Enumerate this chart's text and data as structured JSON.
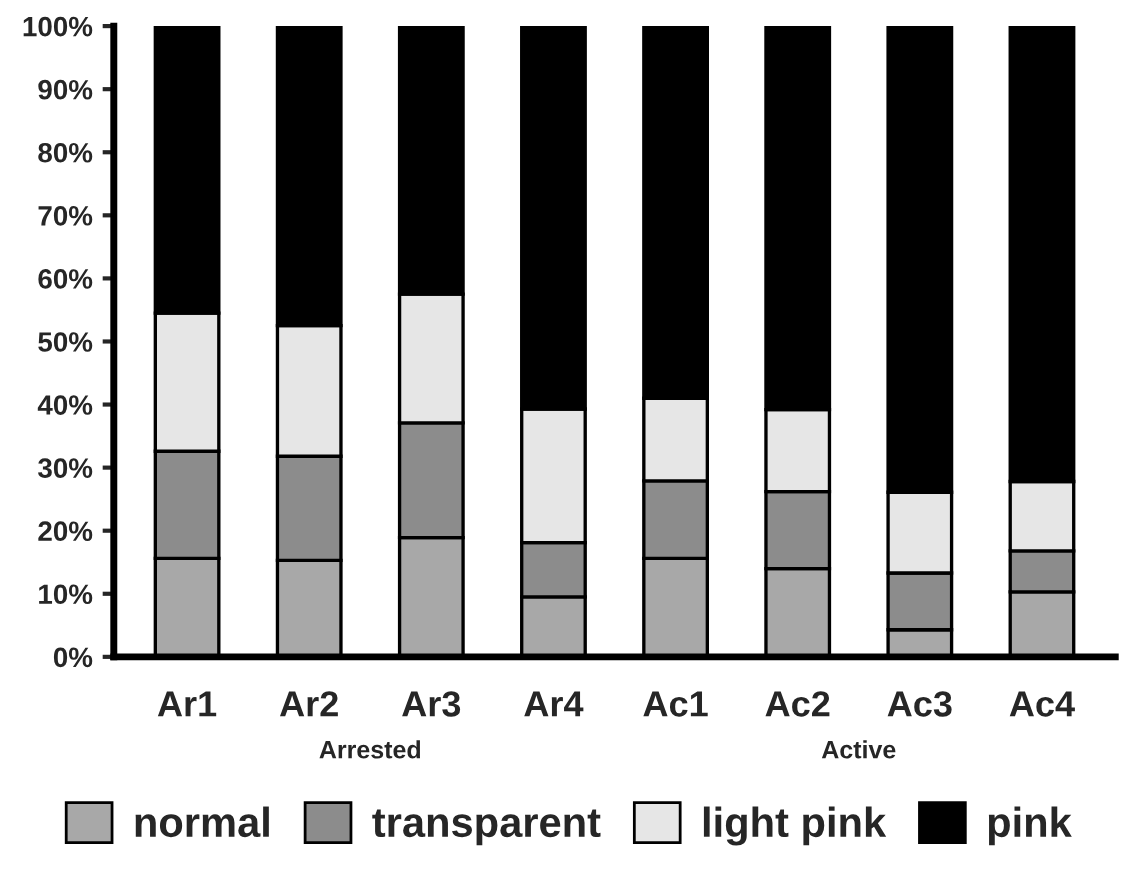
{
  "chart_data": {
    "type": "bar",
    "stacked": true,
    "categories": [
      "Ar1",
      "Ar2",
      "Ar3",
      "Ar4",
      "Ac1",
      "Ac2",
      "Ac3",
      "Ac4"
    ],
    "series": [
      {
        "name": "normal",
        "color": "#a8a8a8",
        "values": [
          15.6,
          15.3,
          18.9,
          9.5,
          15.6,
          14.0,
          4.3,
          10.3
        ]
      },
      {
        "name": "transparent",
        "color": "#8c8c8c",
        "values": [
          17.0,
          16.5,
          18.2,
          8.6,
          12.3,
          12.2,
          9.0,
          6.5
        ]
      },
      {
        "name": "light pink",
        "color": "#e6e6e6",
        "values": [
          21.9,
          20.7,
          20.4,
          21.2,
          13.1,
          13.0,
          12.8,
          11.0
        ]
      },
      {
        "name": "pink",
        "color": "#000000",
        "values": [
          45.5,
          47.5,
          42.5,
          60.7,
          59.0,
          60.8,
          73.9,
          72.2
        ]
      }
    ],
    "ylim": [
      0,
      100
    ],
    "yticks": [
      {
        "value": 0,
        "label": "0%"
      },
      {
        "value": 10,
        "label": "10%"
      },
      {
        "value": 20,
        "label": "20%"
      },
      {
        "value": 30,
        "label": "30%"
      },
      {
        "value": 40,
        "label": "40%"
      },
      {
        "value": 50,
        "label": "50%"
      },
      {
        "value": 60,
        "label": "60%"
      },
      {
        "value": 70,
        "label": "70%"
      },
      {
        "value": 80,
        "label": "80%"
      },
      {
        "value": 90,
        "label": "90%"
      },
      {
        "value": 100,
        "label": "100%"
      }
    ],
    "annotations": [
      "Arrested",
      "Active"
    ],
    "grid": false,
    "legend": "bottom"
  }
}
